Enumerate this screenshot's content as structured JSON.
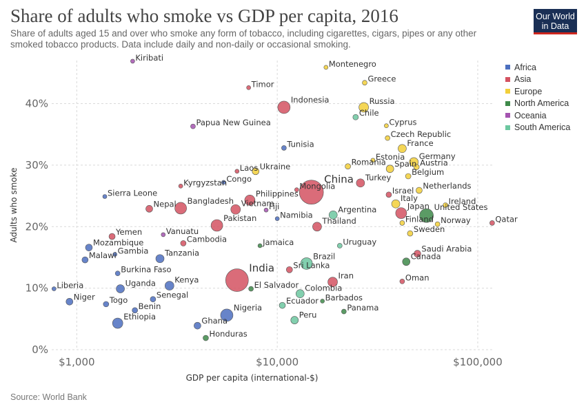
{
  "header": {
    "title": "Share of adults who smoke vs GDP per capita, 2016",
    "subtitle": "Share of adults aged 15 and over who smoke any form of tobacco, including cigarettes, cigars, pipes or any other smoked tobacco products. Data include daily and non-daily or occasional smoking.",
    "logo_line1": "Our World",
    "logo_line2": "in Data"
  },
  "footer": {
    "source": "Source: World Bank"
  },
  "colors": {
    "Africa": "#4c6fbf",
    "Asia": "#d45261",
    "Europe": "#f2cf3a",
    "North America": "#3e8a4a",
    "Oceania": "#a454b0",
    "South America": "#6cc7a0",
    "grid": "#d9d9d9",
    "text": "#333333"
  },
  "chart_data": {
    "type": "scatter",
    "title": "Share of adults who smoke vs GDP per capita, 2016",
    "xlabel": "GDP per capita (international-$)",
    "ylabel": "Adults who smoke",
    "x_scale": "log",
    "xlim": [
      750,
      120000
    ],
    "ylim": [
      0,
      47
    ],
    "x_ticks": [
      {
        "value": 1000,
        "label": "$1,000"
      },
      {
        "value": 10000,
        "label": "$10,000"
      },
      {
        "value": 100000,
        "label": "$100,000"
      }
    ],
    "y_ticks": [
      {
        "value": 0,
        "label": "0%"
      },
      {
        "value": 10,
        "label": "10%"
      },
      {
        "value": 20,
        "label": "20%"
      },
      {
        "value": 30,
        "label": "30%"
      },
      {
        "value": 40,
        "label": "40%"
      }
    ],
    "grid": "dashed",
    "legend_position": "right",
    "legend": [
      "Africa",
      "Asia",
      "Europe",
      "North America",
      "Oceania",
      "South America"
    ],
    "points": [
      {
        "label": "Kiribati",
        "region": "Oceania",
        "x": 1900,
        "y": 46.9,
        "size": 3
      },
      {
        "label": "Montenegro",
        "region": "Europe",
        "x": 17500,
        "y": 45.9,
        "size": 3
      },
      {
        "label": "Greece",
        "region": "Europe",
        "x": 27300,
        "y": 43.4,
        "size": 4
      },
      {
        "label": "Timor",
        "region": "Asia",
        "x": 7200,
        "y": 42.6,
        "size": 3
      },
      {
        "label": "Indonesia",
        "region": "Asia",
        "x": 10800,
        "y": 39.4,
        "size": 15
      },
      {
        "label": "Russia",
        "region": "Europe",
        "x": 27000,
        "y": 39.4,
        "size": 11
      },
      {
        "label": "Chile",
        "region": "South America",
        "x": 24600,
        "y": 37.8,
        "size": 5
      },
      {
        "label": "Cyprus",
        "region": "Europe",
        "x": 35000,
        "y": 36.4,
        "size": 3
      },
      {
        "label": "Papua New Guinea",
        "region": "Oceania",
        "x": 3800,
        "y": 36.3,
        "size": 4
      },
      {
        "label": "Czech Republic",
        "region": "Europe",
        "x": 35500,
        "y": 34.4,
        "size": 4
      },
      {
        "label": "France",
        "region": "Europe",
        "x": 42000,
        "y": 32.7,
        "size": 9
      },
      {
        "label": "Tunisia",
        "region": "Africa",
        "x": 10800,
        "y": 32.8,
        "size": 4
      },
      {
        "label": "Estonia",
        "region": "Europe",
        "x": 30000,
        "y": 30.8,
        "size": 3
      },
      {
        "label": "Germany",
        "region": "Europe",
        "x": 48000,
        "y": 30.5,
        "size": 10
      },
      {
        "label": "Austria",
        "region": "Europe",
        "x": 49500,
        "y": 29.7,
        "size": 5
      },
      {
        "label": "Romania",
        "region": "Europe",
        "x": 22500,
        "y": 29.8,
        "size": 5
      },
      {
        "label": "Spain",
        "region": "Europe",
        "x": 36500,
        "y": 29.4,
        "size": 8
      },
      {
        "label": "Laos",
        "region": "Asia",
        "x": 6300,
        "y": 29.0,
        "size": 3
      },
      {
        "label": "Ukraine",
        "region": "Europe",
        "x": 7800,
        "y": 29.0,
        "size": 7
      },
      {
        "label": "Belgium",
        "region": "Europe",
        "x": 45000,
        "y": 28.2,
        "size": 5
      },
      {
        "label": "China",
        "region": "Asia",
        "x": 14800,
        "y": 25.6,
        "size": 32
      },
      {
        "label": "Turkey",
        "region": "Asia",
        "x": 26000,
        "y": 27.1,
        "size": 9
      },
      {
        "label": "Congo",
        "region": "Africa",
        "x": 5400,
        "y": 27.2,
        "size": 3
      },
      {
        "label": "Kyrgyzstan",
        "region": "Asia",
        "x": 3300,
        "y": 26.6,
        "size": 3
      },
      {
        "label": "Mongolia",
        "region": "Asia",
        "x": 12500,
        "y": 26.0,
        "size": 3
      },
      {
        "label": "Netherlands",
        "region": "Europe",
        "x": 51000,
        "y": 25.9,
        "size": 6
      },
      {
        "label": "Israel",
        "region": "Asia",
        "x": 36000,
        "y": 25.2,
        "size": 5
      },
      {
        "label": "Sierra Leone",
        "region": "Africa",
        "x": 1380,
        "y": 24.9,
        "size": 3
      },
      {
        "label": "Philippines",
        "region": "Asia",
        "x": 7300,
        "y": 24.3,
        "size": 12
      },
      {
        "label": "Italy",
        "region": "Europe",
        "x": 39000,
        "y": 23.7,
        "size": 9
      },
      {
        "label": "Ireland",
        "region": "Europe",
        "x": 69000,
        "y": 23.5,
        "size": 4
      },
      {
        "label": "Bangladesh",
        "region": "Asia",
        "x": 3300,
        "y": 23.0,
        "size": 14
      },
      {
        "label": "Vietnam",
        "region": "Asia",
        "x": 6200,
        "y": 22.8,
        "size": 11
      },
      {
        "label": "Nepal",
        "region": "Asia",
        "x": 2300,
        "y": 22.9,
        "size": 7
      },
      {
        "label": "Fiji",
        "region": "Oceania",
        "x": 8800,
        "y": 22.7,
        "size": 3
      },
      {
        "label": "Japan",
        "region": "Asia",
        "x": 41500,
        "y": 22.2,
        "size": 13
      },
      {
        "label": "United States",
        "region": "North America",
        "x": 55500,
        "y": 21.8,
        "size": 17
      },
      {
        "label": "Argentina",
        "region": "South America",
        "x": 19000,
        "y": 21.9,
        "size": 9
      },
      {
        "label": "Namibia",
        "region": "Africa",
        "x": 10000,
        "y": 21.3,
        "size": 3
      },
      {
        "label": "Pakistan",
        "region": "Asia",
        "x": 5000,
        "y": 20.2,
        "size": 14
      },
      {
        "label": "Thailand",
        "region": "Asia",
        "x": 15800,
        "y": 20.0,
        "size": 10
      },
      {
        "label": "Finland",
        "region": "Europe",
        "x": 42000,
        "y": 20.6,
        "size": 4
      },
      {
        "label": "Norway",
        "region": "Europe",
        "x": 63000,
        "y": 20.4,
        "size": 4
      },
      {
        "label": "Qatar",
        "region": "Asia",
        "x": 118000,
        "y": 20.6,
        "size": 4
      },
      {
        "label": "Sweden",
        "region": "Europe",
        "x": 46000,
        "y": 18.9,
        "size": 5
      },
      {
        "label": "Vanuatu",
        "region": "Oceania",
        "x": 2700,
        "y": 18.7,
        "size": 3
      },
      {
        "label": "Yemen",
        "region": "Asia",
        "x": 1500,
        "y": 18.4,
        "size": 6
      },
      {
        "label": "Cambodia",
        "region": "Asia",
        "x": 3400,
        "y": 17.3,
        "size": 5
      },
      {
        "label": "Jamaica",
        "region": "North America",
        "x": 8200,
        "y": 16.9,
        "size": 3
      },
      {
        "label": "Uruguay",
        "region": "South America",
        "x": 20500,
        "y": 16.9,
        "size": 4
      },
      {
        "label": "Mozambique",
        "region": "Africa",
        "x": 1150,
        "y": 16.6,
        "size": 7
      },
      {
        "label": "Saudi Arabia",
        "region": "Asia",
        "x": 50000,
        "y": 15.6,
        "size": 7
      },
      {
        "label": "Gambia",
        "region": "Africa",
        "x": 1550,
        "y": 15.5,
        "size": 3
      },
      {
        "label": "Malawi",
        "region": "Africa",
        "x": 1100,
        "y": 14.6,
        "size": 6
      },
      {
        "label": "Tanzania",
        "region": "Africa",
        "x": 2600,
        "y": 14.8,
        "size": 9
      },
      {
        "label": "Canada",
        "region": "North America",
        "x": 44000,
        "y": 14.3,
        "size": 8
      },
      {
        "label": "India",
        "region": "Asia",
        "x": 6300,
        "y": 11.3,
        "size": 30
      },
      {
        "label": "Brazil",
        "region": "South America",
        "x": 14000,
        "y": 14.0,
        "size": 14
      },
      {
        "label": "Sri Lanka",
        "region": "Asia",
        "x": 11500,
        "y": 13.0,
        "size": 6
      },
      {
        "label": "Burkina Faso",
        "region": "Africa",
        "x": 1600,
        "y": 12.4,
        "size": 4
      },
      {
        "label": "Iran",
        "region": "Asia",
        "x": 18900,
        "y": 11.0,
        "size": 11
      },
      {
        "label": "Oman",
        "region": "Asia",
        "x": 42000,
        "y": 11.1,
        "size": 4
      },
      {
        "label": "El Salvador",
        "region": "North America",
        "x": 7400,
        "y": 9.9,
        "size": 4
      },
      {
        "label": "Uganda",
        "region": "Africa",
        "x": 1650,
        "y": 9.9,
        "size": 9
      },
      {
        "label": "Kenya",
        "region": "Africa",
        "x": 2900,
        "y": 10.4,
        "size": 10
      },
      {
        "label": "Liberia",
        "region": "Africa",
        "x": 770,
        "y": 9.9,
        "size": 3
      },
      {
        "label": "Colombia",
        "region": "South America",
        "x": 13000,
        "y": 9.1,
        "size": 9
      },
      {
        "label": "Senegal",
        "region": "Africa",
        "x": 2400,
        "y": 8.2,
        "size": 5
      },
      {
        "label": "Barbados",
        "region": "North America",
        "x": 16800,
        "y": 7.9,
        "size": 3
      },
      {
        "label": "Niger",
        "region": "Africa",
        "x": 920,
        "y": 7.8,
        "size": 7
      },
      {
        "label": "Togo",
        "region": "Africa",
        "x": 1400,
        "y": 7.4,
        "size": 5
      },
      {
        "label": "Ecuador",
        "region": "South America",
        "x": 10600,
        "y": 7.2,
        "size": 6
      },
      {
        "label": "Benin",
        "region": "Africa",
        "x": 1950,
        "y": 6.4,
        "size": 5
      },
      {
        "label": "Panama",
        "region": "North America",
        "x": 21500,
        "y": 6.2,
        "size": 4
      },
      {
        "label": "Nigeria",
        "region": "Africa",
        "x": 5600,
        "y": 5.6,
        "size": 15
      },
      {
        "label": "Ethiopia",
        "region": "Africa",
        "x": 1600,
        "y": 4.3,
        "size": 12
      },
      {
        "label": "Peru",
        "region": "South America",
        "x": 12200,
        "y": 4.8,
        "size": 8
      },
      {
        "label": "Ghana",
        "region": "Africa",
        "x": 4000,
        "y": 3.9,
        "size": 7
      },
      {
        "label": "Honduras",
        "region": "North America",
        "x": 4400,
        "y": 1.9,
        "size": 5
      }
    ]
  }
}
